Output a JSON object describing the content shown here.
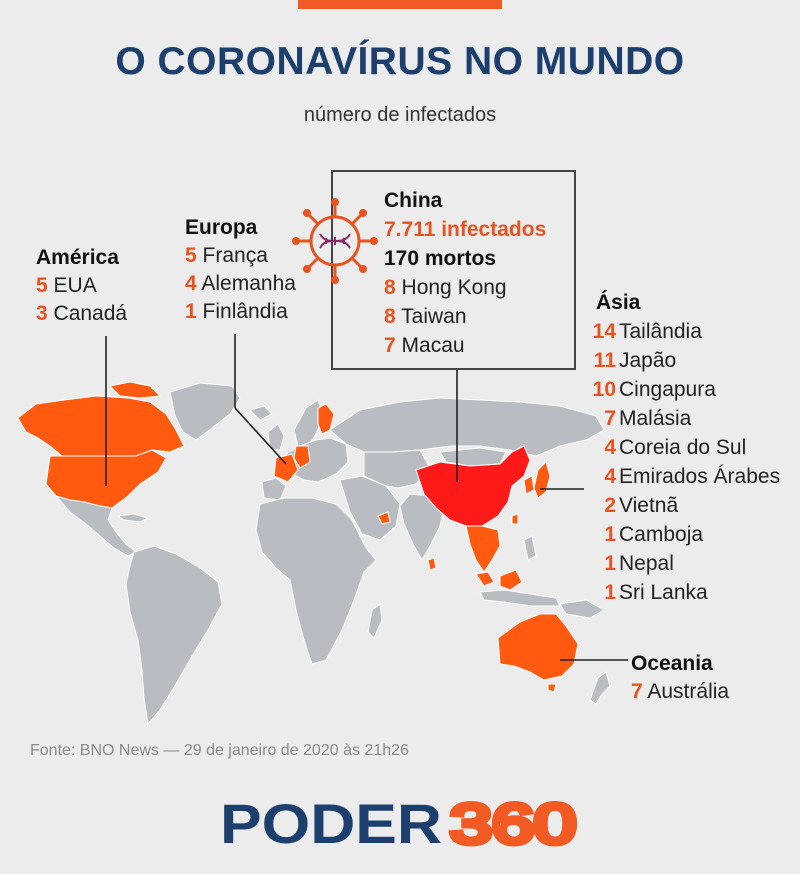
{
  "header": {
    "title": "O CORONAVÍRUS NO MUNDO",
    "subtitle": "número de infectados"
  },
  "america": {
    "title": "América",
    "rows": [
      {
        "count": "5",
        "country": "EUA"
      },
      {
        "count": "3",
        "country": "Canadá"
      }
    ]
  },
  "europe": {
    "title": "Europa",
    "rows": [
      {
        "count": "5",
        "country": "França"
      },
      {
        "count": "4",
        "country": "Alemanha"
      },
      {
        "count": "1",
        "country": "Finlândia"
      }
    ]
  },
  "china": {
    "title": "China",
    "infected": "7.711 infectados",
    "deaths": "170 mortos",
    "rows": [
      {
        "count": "8",
        "country": "Hong Kong"
      },
      {
        "count": "8",
        "country": "Taiwan"
      },
      {
        "count": "7",
        "country": "Macau"
      }
    ]
  },
  "asia": {
    "title": "Ásia",
    "rows": [
      {
        "count": "14",
        "country": "Tailândia"
      },
      {
        "count": "11",
        "country": "Japão"
      },
      {
        "count": "10",
        "country": "Cingapura"
      },
      {
        "count": "7",
        "country": "Malásia"
      },
      {
        "count": "4",
        "country": "Coreia do Sul"
      },
      {
        "count": "4",
        "country": "Emirados Árabes"
      },
      {
        "count": "2",
        "country": "Vietnã"
      },
      {
        "count": "1",
        "country": "Camboja"
      },
      {
        "count": "1",
        "country": "Nepal"
      },
      {
        "count": "1",
        "country": "Sri Lanka"
      }
    ]
  },
  "oceania": {
    "title": "Oceania",
    "rows": [
      {
        "count": "7",
        "country": "Austrália"
      }
    ]
  },
  "source": "Fonte: BNO News — 29 de janeiro de 2020 às 21h26",
  "logo": {
    "part1": "PODER",
    "part2": "360"
  },
  "colors": {
    "accent": "#f15a22",
    "affected": "#ff5a10",
    "china": "#ff1a1a",
    "land": "#b9bcc0",
    "border": "#ffffff",
    "navy": "#1d3f6e"
  },
  "icons": {
    "virus": "virus-icon"
  }
}
